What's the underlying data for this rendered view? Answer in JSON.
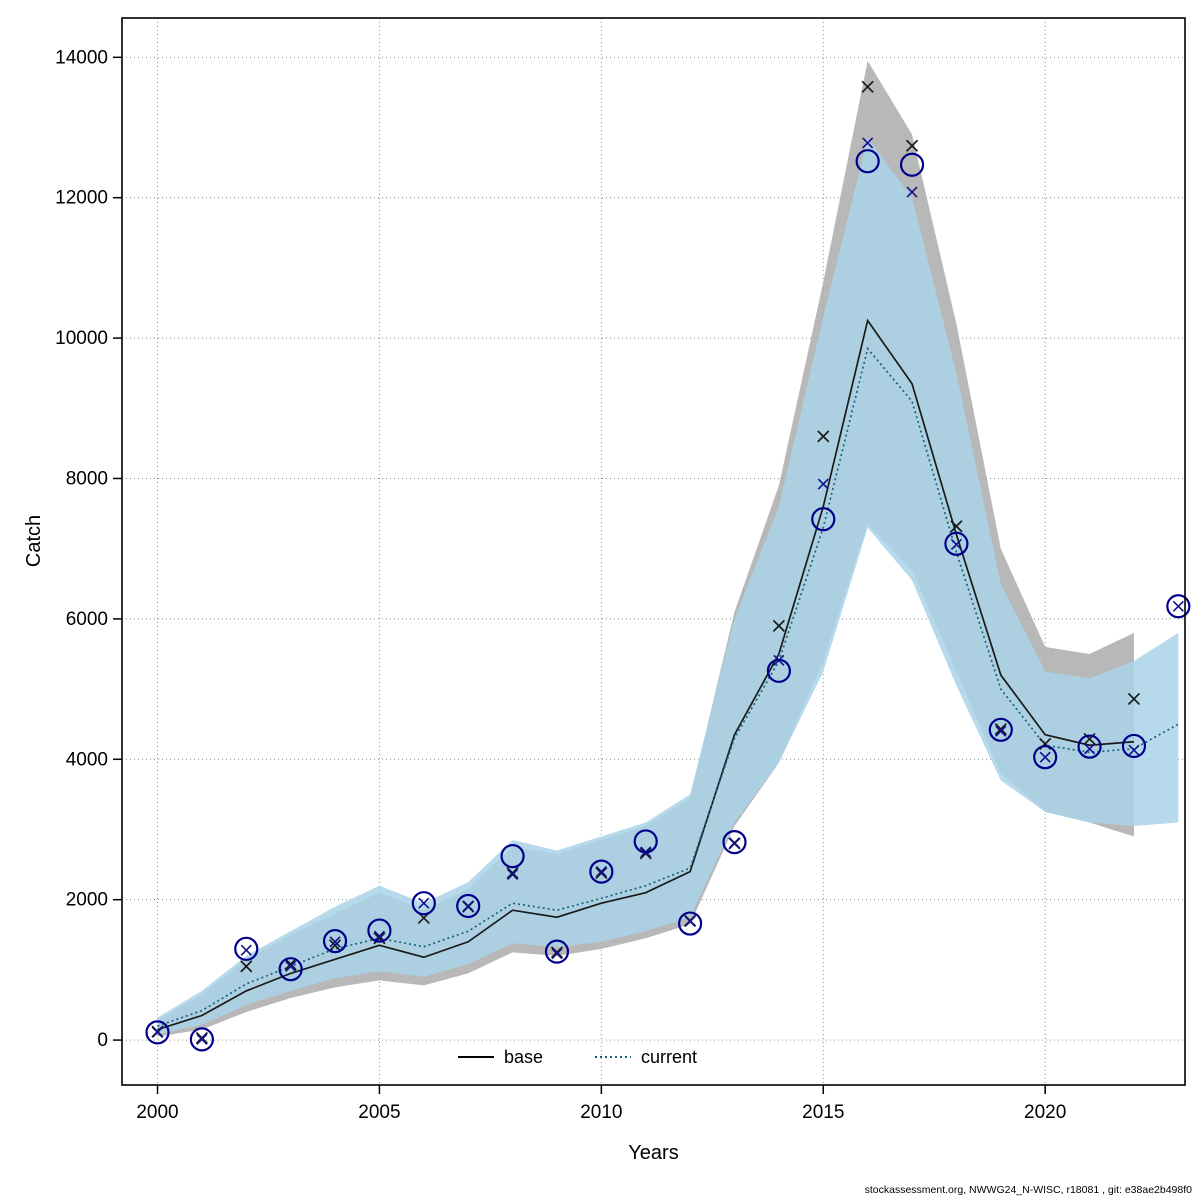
{
  "footer": {
    "text": "stockassessment.org, NWWG24_N-WISC, r18081 , git: e38ae2b498f0"
  },
  "chart_data": {
    "type": "line",
    "title": "",
    "xlabel": "Years",
    "ylabel": "Catch",
    "xlim": [
      1999.2,
      2023.15
    ],
    "ylim": [
      -640,
      14560
    ],
    "x_ticks": [
      2000,
      2005,
      2010,
      2015,
      2020
    ],
    "y_ticks": [
      0,
      2000,
      4000,
      6000,
      8000,
      10000,
      12000,
      14000
    ],
    "grid": "dotted",
    "legend": [
      {
        "label": "base",
        "style": "solid",
        "color": "#000000"
      },
      {
        "label": "current",
        "style": "dotted",
        "color": "#17637a"
      }
    ],
    "bands": [
      {
        "name": "base_ci",
        "color": "#ababab",
        "opacity": 0.85,
        "years": [
          2000,
          2001,
          2002,
          2003,
          2004,
          2005,
          2006,
          2007,
          2008,
          2009,
          2010,
          2011,
          2012,
          2013,
          2014,
          2015,
          2016,
          2017,
          2018,
          2019,
          2020,
          2021,
          2022
        ],
        "lower": [
          50,
          150,
          400,
          600,
          750,
          850,
          780,
          950,
          1250,
          1200,
          1300,
          1450,
          1650,
          3050,
          3950,
          5400,
          7350,
          6700,
          5250,
          3800,
          3250,
          3100,
          2900
        ],
        "upper": [
          280,
          650,
          1150,
          1500,
          1800,
          2100,
          1850,
          2150,
          2750,
          2650,
          2850,
          3050,
          3450,
          6100,
          7900,
          10800,
          13950,
          12900,
          10200,
          7000,
          5600,
          5500,
          5800
        ]
      },
      {
        "name": "current_ci",
        "color": "#a9d3e9",
        "opacity": 0.85,
        "years": [
          2000,
          2001,
          2002,
          2003,
          2004,
          2005,
          2006,
          2007,
          2008,
          2009,
          2010,
          2011,
          2012,
          2013,
          2014,
          2015,
          2016,
          2017,
          2018,
          2019,
          2020,
          2021,
          2022,
          2023
        ],
        "lower": [
          80,
          220,
          500,
          700,
          880,
          980,
          900,
          1080,
          1380,
          1320,
          1400,
          1550,
          1750,
          3100,
          3950,
          5250,
          7300,
          6550,
          5050,
          3700,
          3250,
          3100,
          3050,
          3100
        ],
        "upper": [
          320,
          700,
          1200,
          1550,
          1900,
          2200,
          1950,
          2250,
          2850,
          2700,
          2900,
          3100,
          3500,
          6000,
          7600,
          10300,
          12850,
          12000,
          9500,
          6500,
          5250,
          5150,
          5400,
          5800
        ]
      }
    ],
    "lines": [
      {
        "name": "base",
        "color": "#1a1a1a",
        "dash": "",
        "width": 1.7,
        "years": [
          2000,
          2001,
          2002,
          2003,
          2004,
          2005,
          2006,
          2007,
          2008,
          2009,
          2010,
          2011,
          2012,
          2013,
          2014,
          2015,
          2016,
          2017,
          2018,
          2019,
          2020,
          2021,
          2022
        ],
        "values": [
          150,
          350,
          700,
          950,
          1150,
          1350,
          1180,
          1400,
          1850,
          1750,
          1950,
          2100,
          2400,
          4350,
          5500,
          7600,
          10250,
          9350,
          7200,
          5200,
          4350,
          4200,
          4250
        ]
      },
      {
        "name": "current",
        "color": "#17637a",
        "dash": "2 3",
        "width": 1.7,
        "years": [
          2000,
          2001,
          2002,
          2003,
          2004,
          2005,
          2006,
          2007,
          2008,
          2009,
          2010,
          2011,
          2012,
          2013,
          2014,
          2015,
          2016,
          2017,
          2018,
          2019,
          2020,
          2021,
          2022,
          2023
        ],
        "values": [
          200,
          420,
          800,
          1050,
          1300,
          1450,
          1330,
          1550,
          1950,
          1850,
          2020,
          2200,
          2450,
          4300,
          5400,
          7300,
          9850,
          9100,
          6950,
          5000,
          4200,
          4100,
          4150,
          4500
        ]
      }
    ],
    "markers": [
      {
        "name": "base_obs",
        "shape": "x",
        "color": "#1a1a1a",
        "size": 5.5,
        "stroke_width": 1.7,
        "years": [
          2000,
          2001,
          2002,
          2003,
          2004,
          2005,
          2006,
          2007,
          2008,
          2009,
          2010,
          2011,
          2012,
          2013,
          2014,
          2015,
          2016,
          2017,
          2018,
          2019,
          2020,
          2021,
          2022
        ],
        "values": [
          120,
          30,
          1050,
          1080,
          1350,
          1450,
          1740,
          1900,
          2380,
          1250,
          2380,
          2660,
          1700,
          2800,
          5900,
          8600,
          13580,
          12740,
          7320,
          4430,
          4220,
          4290,
          4860
        ]
      },
      {
        "name": "current_obs_x",
        "shape": "x",
        "color": "#101090",
        "size": 5,
        "stroke_width": 1.6,
        "years": [
          2000,
          2001,
          2002,
          2003,
          2004,
          2005,
          2006,
          2007,
          2008,
          2009,
          2010,
          2011,
          2012,
          2013,
          2014,
          2015,
          2016,
          2017,
          2018,
          2019,
          2020,
          2021,
          2022,
          2023
        ],
        "values": [
          110,
          10,
          1280,
          1050,
          1400,
          1480,
          1950,
          1910,
          2360,
          1230,
          2400,
          2680,
          1690,
          2810,
          5410,
          7920,
          12780,
          12080,
          7060,
          4400,
          4030,
          4150,
          4130,
          6180
        ]
      },
      {
        "name": "current_obs_circle",
        "shape": "circle",
        "color": "#00008b",
        "size": 11,
        "stroke_width": 2.2,
        "years": [
          2000,
          2001,
          2002,
          2003,
          2004,
          2005,
          2006,
          2007,
          2008,
          2009,
          2010,
          2011,
          2012,
          2013,
          2014,
          2015,
          2016,
          2017,
          2018,
          2019,
          2020,
          2021,
          2022,
          2023
        ],
        "values": [
          110,
          10,
          1300,
          1010,
          1410,
          1560,
          1950,
          1910,
          2620,
          1260,
          2400,
          2830,
          1660,
          2820,
          5260,
          7420,
          12520,
          12470,
          7070,
          4420,
          4030,
          4180,
          4190,
          6180
        ]
      }
    ]
  }
}
